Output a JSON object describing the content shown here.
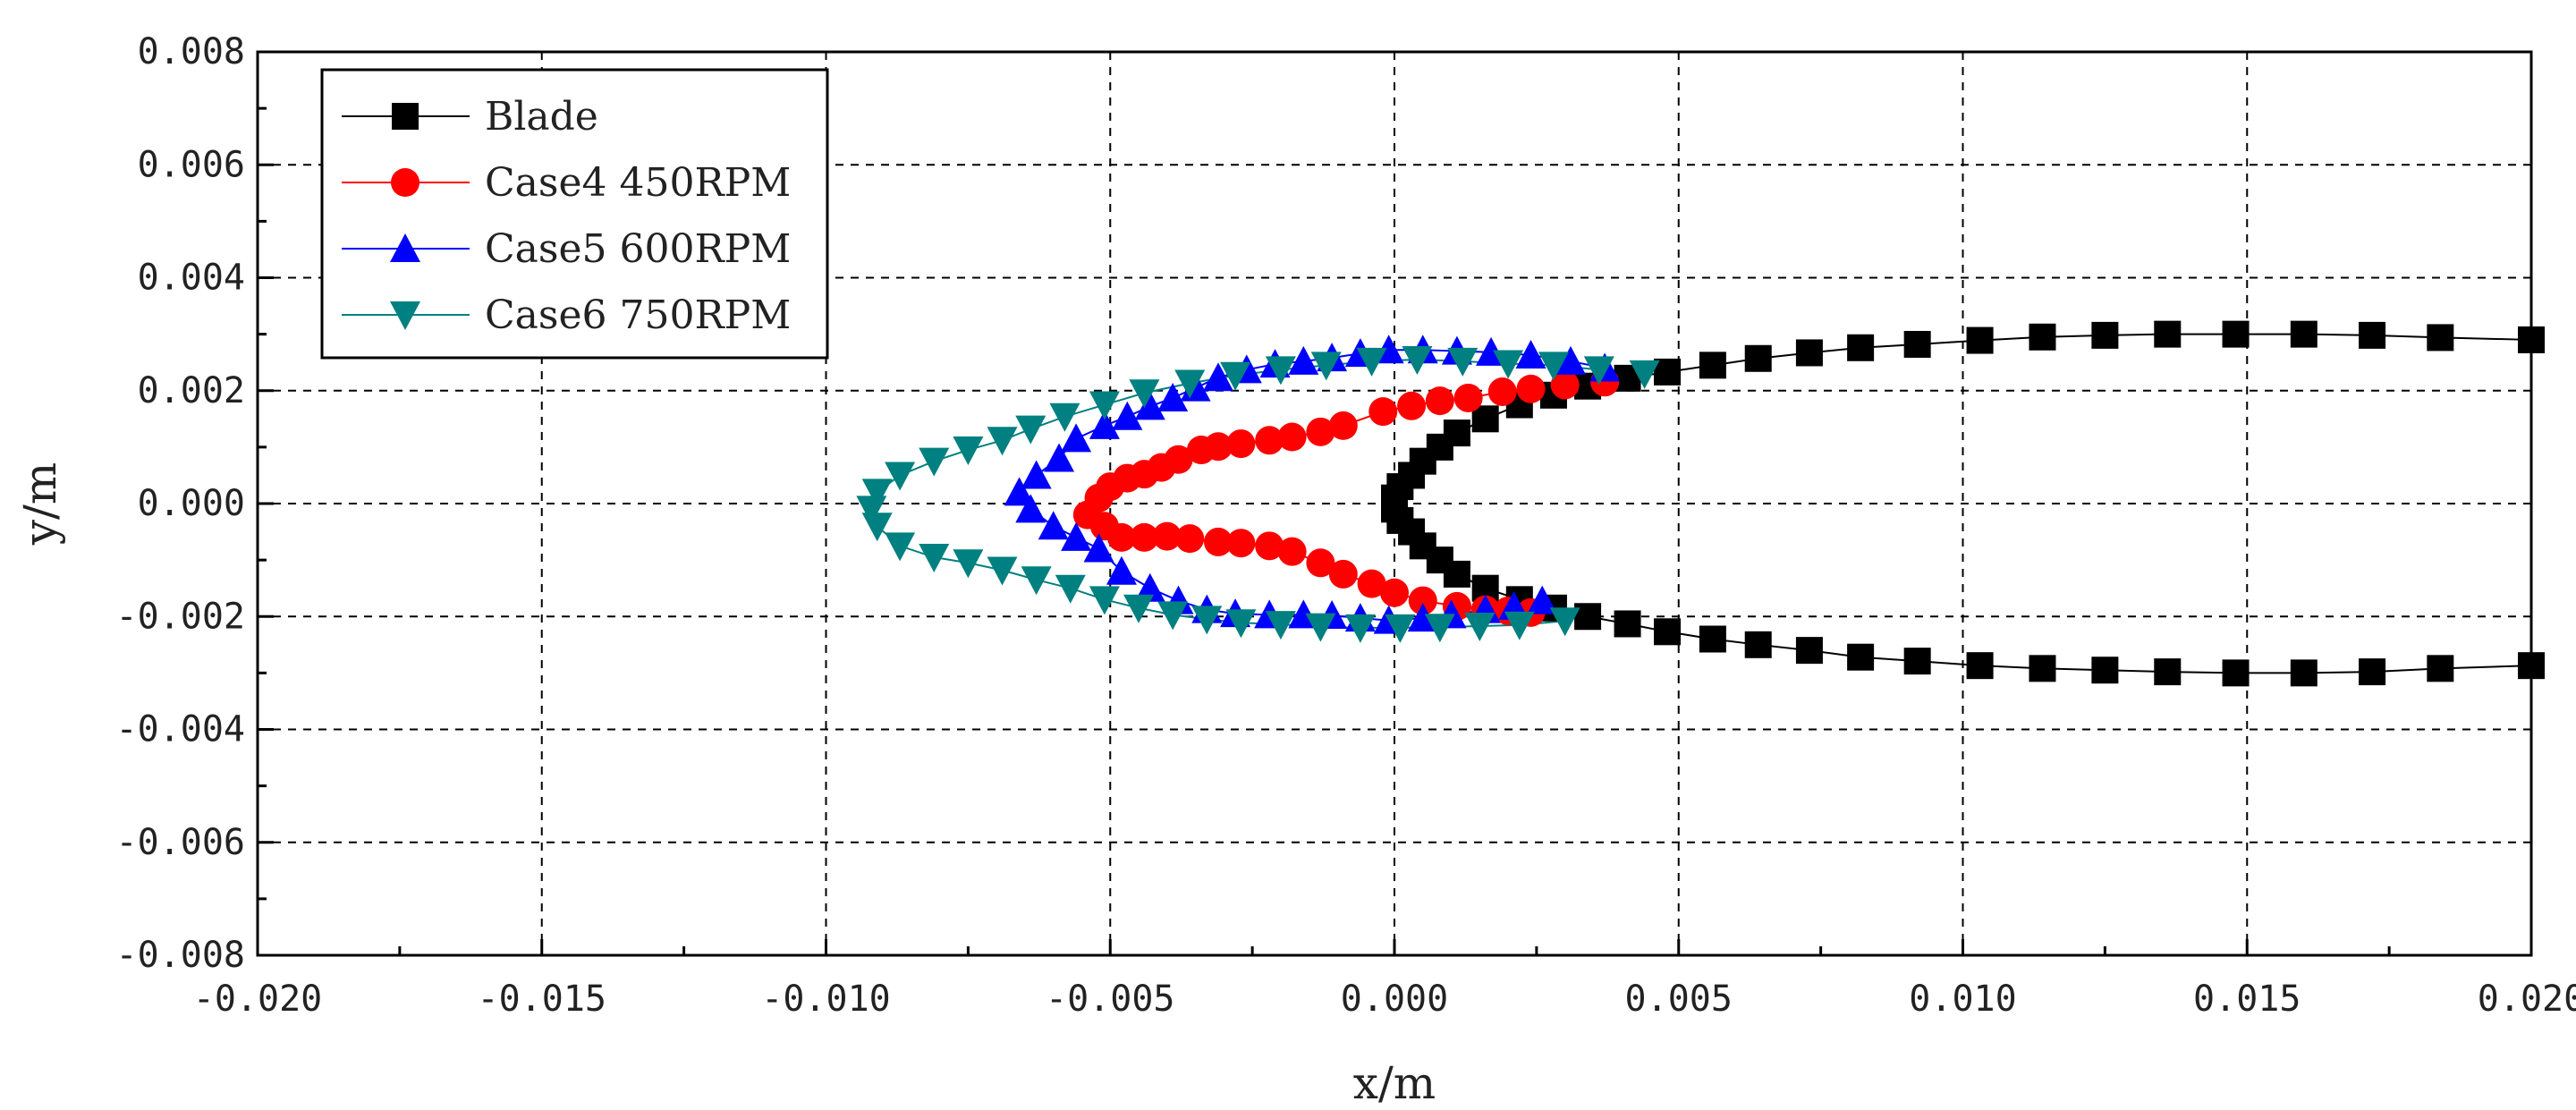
{
  "chart_data": {
    "type": "scatter",
    "title": "",
    "xlabel": "x/m",
    "ylabel": "y/m",
    "xlim": [
      -0.02,
      0.02
    ],
    "ylim": [
      -0.008,
      0.008
    ],
    "x_ticks": [
      -0.02,
      -0.015,
      -0.01,
      -0.005,
      0.0,
      0.005,
      0.01,
      0.015,
      0.02
    ],
    "x_tick_labels": [
      "-0.020",
      "-0.015",
      "-0.010",
      "-0.005",
      "0.000",
      "0.005",
      "0.010",
      "0.015",
      "0.020"
    ],
    "y_ticks": [
      -0.008,
      -0.006,
      -0.004,
      -0.002,
      0.0,
      0.002,
      0.004,
      0.006,
      0.008
    ],
    "y_tick_labels": [
      "-0.008",
      "-0.006",
      "-0.004",
      "-0.002",
      "0.000",
      "0.002",
      "0.004",
      "0.006",
      "0.008"
    ],
    "grid": true,
    "legend_position": "top-left",
    "series": [
      {
        "name": "Blade",
        "color": "#000000",
        "marker": "square",
        "points": [
          [
            0.02,
            0.0029
          ],
          [
            0.0184,
            0.00294
          ],
          [
            0.0172,
            0.00298
          ],
          [
            0.016,
            0.003
          ],
          [
            0.0148,
            0.003
          ],
          [
            0.0136,
            0.003
          ],
          [
            0.0125,
            0.00298
          ],
          [
            0.0114,
            0.00295
          ],
          [
            0.0103,
            0.00289
          ],
          [
            0.0092,
            0.00282
          ],
          [
            0.0082,
            0.00276
          ],
          [
            0.0073,
            0.00267
          ],
          [
            0.0064,
            0.00257
          ],
          [
            0.0056,
            0.00245
          ],
          [
            0.0048,
            0.00233
          ],
          [
            0.0041,
            0.00222
          ],
          [
            0.0034,
            0.00208
          ],
          [
            0.0028,
            0.00192
          ],
          [
            0.0022,
            0.00175
          ],
          [
            0.0016,
            0.0015
          ],
          [
            0.0011,
            0.00125
          ],
          [
            0.0008,
            0.001
          ],
          [
            0.0005,
            0.00075
          ],
          [
            0.0003,
            0.0005
          ],
          [
            0.0001,
            0.0003
          ],
          [
            0.0,
            0.0001
          ],
          [
            0.0,
            -0.0001
          ],
          [
            0.0001,
            -0.0003
          ],
          [
            0.0003,
            -0.0005
          ],
          [
            0.0005,
            -0.00075
          ],
          [
            0.0008,
            -0.001
          ],
          [
            0.0011,
            -0.00125
          ],
          [
            0.0016,
            -0.0015
          ],
          [
            0.0022,
            -0.0017
          ],
          [
            0.0028,
            -0.00185
          ],
          [
            0.0034,
            -0.002
          ],
          [
            0.0041,
            -0.00213
          ],
          [
            0.0048,
            -0.00227
          ],
          [
            0.0056,
            -0.0024
          ],
          [
            0.0064,
            -0.0025
          ],
          [
            0.0073,
            -0.0026
          ],
          [
            0.0082,
            -0.00272
          ],
          [
            0.0092,
            -0.00279
          ],
          [
            0.0103,
            -0.00287
          ],
          [
            0.0114,
            -0.00292
          ],
          [
            0.0125,
            -0.00295
          ],
          [
            0.0136,
            -0.00298
          ],
          [
            0.0148,
            -0.003
          ],
          [
            0.016,
            -0.003
          ],
          [
            0.0172,
            -0.00298
          ],
          [
            0.0184,
            -0.00292
          ],
          [
            0.02,
            -0.00287
          ]
        ]
      },
      {
        "name": "Case4 450RPM",
        "color": "#ff0000",
        "marker": "circle",
        "points": [
          [
            0.0037,
            0.00215
          ],
          [
            0.003,
            0.0021
          ],
          [
            0.0024,
            0.00203
          ],
          [
            0.0019,
            0.00198
          ],
          [
            0.0013,
            0.00187
          ],
          [
            0.0008,
            0.00182
          ],
          [
            0.0003,
            0.00173
          ],
          [
            -0.0002,
            0.00163
          ],
          [
            -0.0009,
            0.00138
          ],
          [
            -0.0013,
            0.00127
          ],
          [
            -0.0018,
            0.00118
          ],
          [
            -0.0022,
            0.00112
          ],
          [
            -0.0027,
            0.00106
          ],
          [
            -0.0031,
            0.00101
          ],
          [
            -0.0034,
            0.00095
          ],
          [
            -0.0038,
            0.00078
          ],
          [
            -0.0041,
            0.00064
          ],
          [
            -0.0044,
            0.00052
          ],
          [
            -0.0047,
            0.00045
          ],
          [
            -0.005,
            0.0003
          ],
          [
            -0.0052,
            0.0001
          ],
          [
            -0.0054,
            -0.0002
          ],
          [
            -0.0051,
            -0.0004
          ],
          [
            -0.0048,
            -0.0006
          ],
          [
            -0.0044,
            -0.0006
          ],
          [
            -0.004,
            -0.00058
          ],
          [
            -0.0036,
            -0.00062
          ],
          [
            -0.0031,
            -0.00068
          ],
          [
            -0.0027,
            -0.0007
          ],
          [
            -0.0022,
            -0.00075
          ],
          [
            -0.0018,
            -0.00085
          ],
          [
            -0.0013,
            -0.00105
          ],
          [
            -0.0009,
            -0.00125
          ],
          [
            -0.0004,
            -0.00142
          ],
          [
            0.0,
            -0.00158
          ],
          [
            0.0005,
            -0.00172
          ],
          [
            0.0011,
            -0.00182
          ],
          [
            0.0016,
            -0.00188
          ],
          [
            0.002,
            -0.0019
          ],
          [
            0.0024,
            -0.00193
          ]
        ]
      },
      {
        "name": "Case5 600RPM",
        "color": "#0000ff",
        "marker": "triangle-up",
        "points": [
          [
            0.0037,
            0.0024
          ],
          [
            0.0031,
            0.00252
          ],
          [
            0.0024,
            0.00263
          ],
          [
            0.0017,
            0.00268
          ],
          [
            0.0011,
            0.0027
          ],
          [
            0.0005,
            0.00272
          ],
          [
            -0.0001,
            0.00272
          ],
          [
            -0.0006,
            0.00266
          ],
          [
            -0.0011,
            0.00258
          ],
          [
            -0.0016,
            0.00252
          ],
          [
            -0.0021,
            0.00247
          ],
          [
            -0.0026,
            0.00237
          ],
          [
            -0.0031,
            0.00223
          ],
          [
            -0.0035,
            0.00205
          ],
          [
            -0.0039,
            0.00187
          ],
          [
            -0.0043,
            0.00172
          ],
          [
            -0.0047,
            0.00154
          ],
          [
            -0.0051,
            0.00138
          ],
          [
            -0.0056,
            0.00115
          ],
          [
            -0.0059,
            0.0008
          ],
          [
            -0.0063,
            0.0005
          ],
          [
            -0.0066,
            0.0002
          ],
          [
            -0.0064,
            -0.0001
          ],
          [
            -0.006,
            -0.0004
          ],
          [
            -0.0056,
            -0.0006
          ],
          [
            -0.0052,
            -0.0008
          ],
          [
            -0.0048,
            -0.0012
          ],
          [
            -0.0043,
            -0.0015
          ],
          [
            -0.0038,
            -0.00172
          ],
          [
            -0.0033,
            -0.00188
          ],
          [
            -0.0028,
            -0.00195
          ],
          [
            -0.0022,
            -0.00197
          ],
          [
            -0.0016,
            -0.00197
          ],
          [
            -0.0011,
            -0.00198
          ],
          [
            -0.0006,
            -0.00203
          ],
          [
            -0.0001,
            -0.00207
          ],
          [
            0.0005,
            -0.00203
          ],
          [
            0.001,
            -0.00197
          ],
          [
            0.0016,
            -0.00188
          ],
          [
            0.0021,
            -0.00182
          ],
          [
            0.0026,
            -0.00172
          ]
        ]
      },
      {
        "name": "Case6 750RPM",
        "color": "#008080",
        "marker": "triangle-down",
        "points": [
          [
            0.0044,
            0.0023
          ],
          [
            0.0036,
            0.00237
          ],
          [
            0.0028,
            0.00245
          ],
          [
            0.002,
            0.00248
          ],
          [
            0.0012,
            0.00252
          ],
          [
            0.0004,
            0.00255
          ],
          [
            -0.0004,
            0.00252
          ],
          [
            -0.0012,
            0.00245
          ],
          [
            -0.002,
            0.00237
          ],
          [
            -0.0028,
            0.00227
          ],
          [
            -0.0036,
            0.00213
          ],
          [
            -0.0044,
            0.00196
          ],
          [
            -0.0051,
            0.00175
          ],
          [
            -0.0058,
            0.00154
          ],
          [
            -0.0064,
            0.00132
          ],
          [
            -0.0069,
            0.00112
          ],
          [
            -0.0075,
            0.00095
          ],
          [
            -0.0081,
            0.00075
          ],
          [
            -0.0087,
            0.0005
          ],
          [
            -0.0091,
            0.0002
          ],
          [
            -0.0092,
            -0.0001
          ],
          [
            -0.0091,
            -0.0004
          ],
          [
            -0.0087,
            -0.00075
          ],
          [
            -0.0081,
            -0.00095
          ],
          [
            -0.0075,
            -0.00105
          ],
          [
            -0.0069,
            -0.00118
          ],
          [
            -0.0063,
            -0.00135
          ],
          [
            -0.0057,
            -0.0015
          ],
          [
            -0.0051,
            -0.0017
          ],
          [
            -0.0045,
            -0.00185
          ],
          [
            -0.0039,
            -0.00197
          ],
          [
            -0.0033,
            -0.00205
          ],
          [
            -0.0027,
            -0.00211
          ],
          [
            -0.002,
            -0.00214
          ],
          [
            -0.0013,
            -0.00218
          ],
          [
            -0.0006,
            -0.0022
          ],
          [
            0.0001,
            -0.0022
          ],
          [
            0.0008,
            -0.00219
          ],
          [
            0.0015,
            -0.00217
          ],
          [
            0.0022,
            -0.00215
          ],
          [
            0.003,
            -0.00208
          ]
        ]
      }
    ]
  }
}
